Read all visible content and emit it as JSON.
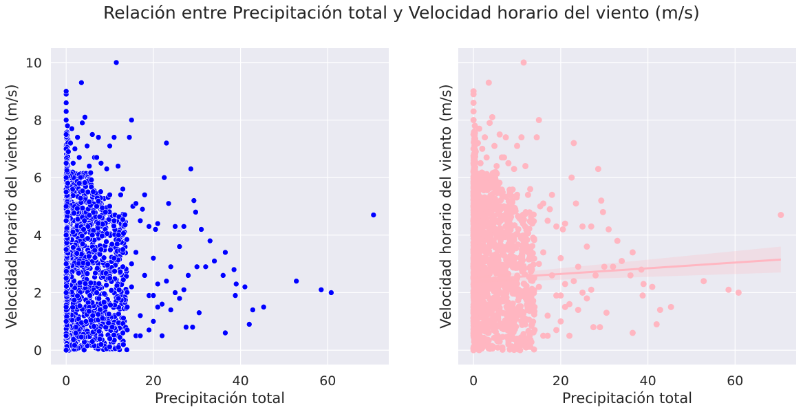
{
  "figure": {
    "title": "Relación entre  Precipitación total y Velocidad horario del viento (m/s)"
  },
  "colors": {
    "panel_background": "#eaeaf2",
    "grid": "#ffffff",
    "scatter_left": "#0000ff",
    "scatter_right": "#ffb6c1",
    "regression_line": "#ffb6c1"
  },
  "chart_data": [
    {
      "type": "scatter",
      "xlabel": "Precipitación total",
      "ylabel": "Velocidad horario del viento (m/s)",
      "xlim": [
        -3.5,
        74
      ],
      "ylim": [
        -0.5,
        10.5
      ],
      "xticks": [
        0,
        20,
        40,
        60
      ],
      "yticks": [
        0,
        2,
        4,
        6,
        8,
        10
      ],
      "grid": true,
      "series": [
        {
          "marker": "circle",
          "points": [
            [
              0,
              0
            ],
            [
              0,
              0.5
            ],
            [
              0,
              1
            ],
            [
              0,
              1.5
            ],
            [
              0,
              2
            ],
            [
              0,
              2.5
            ],
            [
              0,
              3
            ],
            [
              0,
              3.5
            ],
            [
              0,
              4
            ],
            [
              0,
              4.5
            ],
            [
              0,
              5
            ],
            [
              0,
              5.5
            ],
            [
              0,
              6
            ],
            [
              0,
              6.5
            ],
            [
              0,
              7
            ],
            [
              0,
              7.5
            ],
            [
              0,
              8
            ],
            [
              0,
              8.3
            ],
            [
              0,
              8.6
            ],
            [
              0,
              8.9
            ],
            [
              0,
              9
            ],
            [
              0.3,
              7.8
            ],
            [
              0.5,
              6.9
            ],
            [
              1,
              7.2
            ],
            [
              1.3,
              7.7
            ],
            [
              1.6,
              6.5
            ],
            [
              2,
              7
            ],
            [
              2.6,
              7.4
            ],
            [
              3,
              6.7
            ],
            [
              3.5,
              9.3
            ],
            [
              3.7,
              7.9
            ],
            [
              4.3,
              8.1
            ],
            [
              4.8,
              7.1
            ],
            [
              5.3,
              6.4
            ],
            [
              6,
              7.5
            ],
            [
              6.5,
              6.7
            ],
            [
              7,
              6.7
            ],
            [
              7.4,
              7.4
            ],
            [
              8,
              6.5
            ],
            [
              9.3,
              6.3
            ],
            [
              10,
              7.1
            ],
            [
              11,
              7.4
            ],
            [
              11.5,
              10
            ],
            [
              11.9,
              6.4
            ],
            [
              12.5,
              5.4
            ],
            [
              13,
              5.6
            ],
            [
              14.5,
              7.4
            ],
            [
              15,
              8
            ],
            [
              15.3,
              5
            ],
            [
              16,
              5.1
            ],
            [
              17,
              4.5
            ],
            [
              17.5,
              4.9
            ],
            [
              18,
              5.4
            ],
            [
              19,
              4.3
            ],
            [
              20,
              3.2
            ],
            [
              20.5,
              4.2
            ],
            [
              21,
              4.4
            ],
            [
              22,
              1.6
            ],
            [
              22.5,
              6
            ],
            [
              23,
              7.2
            ],
            [
              23.5,
              5.1
            ],
            [
              24,
              2.9
            ],
            [
              25,
              4.3
            ],
            [
              26,
              3.6
            ],
            [
              27,
              4.3
            ],
            [
              27.5,
              0.8
            ],
            [
              28,
              2.6
            ],
            [
              28.6,
              6.3
            ],
            [
              29,
              0.8
            ],
            [
              29.3,
              5.2
            ],
            [
              29.7,
              4.8
            ],
            [
              30,
              2.9
            ],
            [
              30.5,
              1.3
            ],
            [
              31,
              4.2
            ],
            [
              32,
              2.9
            ],
            [
              33,
              3.8
            ],
            [
              34,
              3.1
            ],
            [
              36,
              2.6
            ],
            [
              36.5,
              0.6
            ],
            [
              36.5,
              3.4
            ],
            [
              38.5,
              2.8
            ],
            [
              38.8,
              1.9
            ],
            [
              39,
              2.3
            ],
            [
              41,
              2.2
            ],
            [
              42,
              0.9
            ],
            [
              42.8,
              1.4
            ],
            [
              45.3,
              1.5
            ],
            [
              52.8,
              2.4
            ],
            [
              58.5,
              2.1
            ],
            [
              60.8,
              2
            ],
            [
              70.5,
              4.7
            ],
            [
              5,
              3
            ],
            [
              6,
              4
            ],
            [
              7,
              2
            ],
            [
              8,
              3.5
            ],
            [
              9,
              1.5
            ],
            [
              10,
              2.5
            ],
            [
              11,
              3.2
            ],
            [
              12,
              1.8
            ],
            [
              13,
              2.9
            ],
            [
              14,
              0.7
            ],
            [
              15,
              2.2
            ],
            [
              16,
              3.4
            ],
            [
              17,
              1.2
            ],
            [
              18,
              2.6
            ],
            [
              19,
              1.9
            ],
            [
              20,
              1
            ],
            [
              21,
              2.3
            ],
            [
              5,
              5.5
            ],
            [
              7,
              5
            ],
            [
              9,
              4.8
            ],
            [
              10,
              5.4
            ],
            [
              11,
              4.5
            ],
            [
              12,
              4
            ],
            [
              13,
              3.5
            ],
            [
              14,
              1.5
            ],
            [
              15,
              3
            ],
            [
              16,
              0.5
            ],
            [
              3,
              5.8
            ],
            [
              4,
              4.2
            ],
            [
              6,
              0.3
            ],
            [
              8,
              0.2
            ],
            [
              10,
              0.4
            ],
            [
              12,
              0.1
            ],
            [
              13,
              0.6
            ],
            [
              17,
              0.5
            ],
            [
              19,
              0.7
            ],
            [
              22,
              0.5
            ],
            [
              24,
              1.4
            ],
            [
              25,
              2
            ],
            [
              26,
              1.8
            ],
            [
              27,
              2.1
            ],
            [
              23,
              2.4
            ],
            [
              21,
              1.5
            ],
            [
              20,
              1.9
            ]
          ]
        }
      ]
    },
    {
      "type": "scatter",
      "xlabel": "Precipitación total",
      "ylabel": "Velocidad horario del viento (m/s)",
      "xlim": [
        -3.5,
        74
      ],
      "ylim": [
        -0.5,
        10.5
      ],
      "xticks": [
        0,
        20,
        40,
        60
      ],
      "yticks": [
        0,
        2,
        4,
        6,
        8,
        10
      ],
      "show_ytick_labels": false,
      "grid": true,
      "series": [
        {
          "marker": "circle",
          "same_points_as_left": true
        }
      ],
      "regression": {
        "x": [
          0,
          70.5
        ],
        "y": [
          2.45,
          3.15
        ],
        "ci_lower_end": 2.7,
        "ci_upper_end": 3.6,
        "ci_lower_start": 2.35,
        "ci_upper_start": 2.55
      }
    }
  ]
}
